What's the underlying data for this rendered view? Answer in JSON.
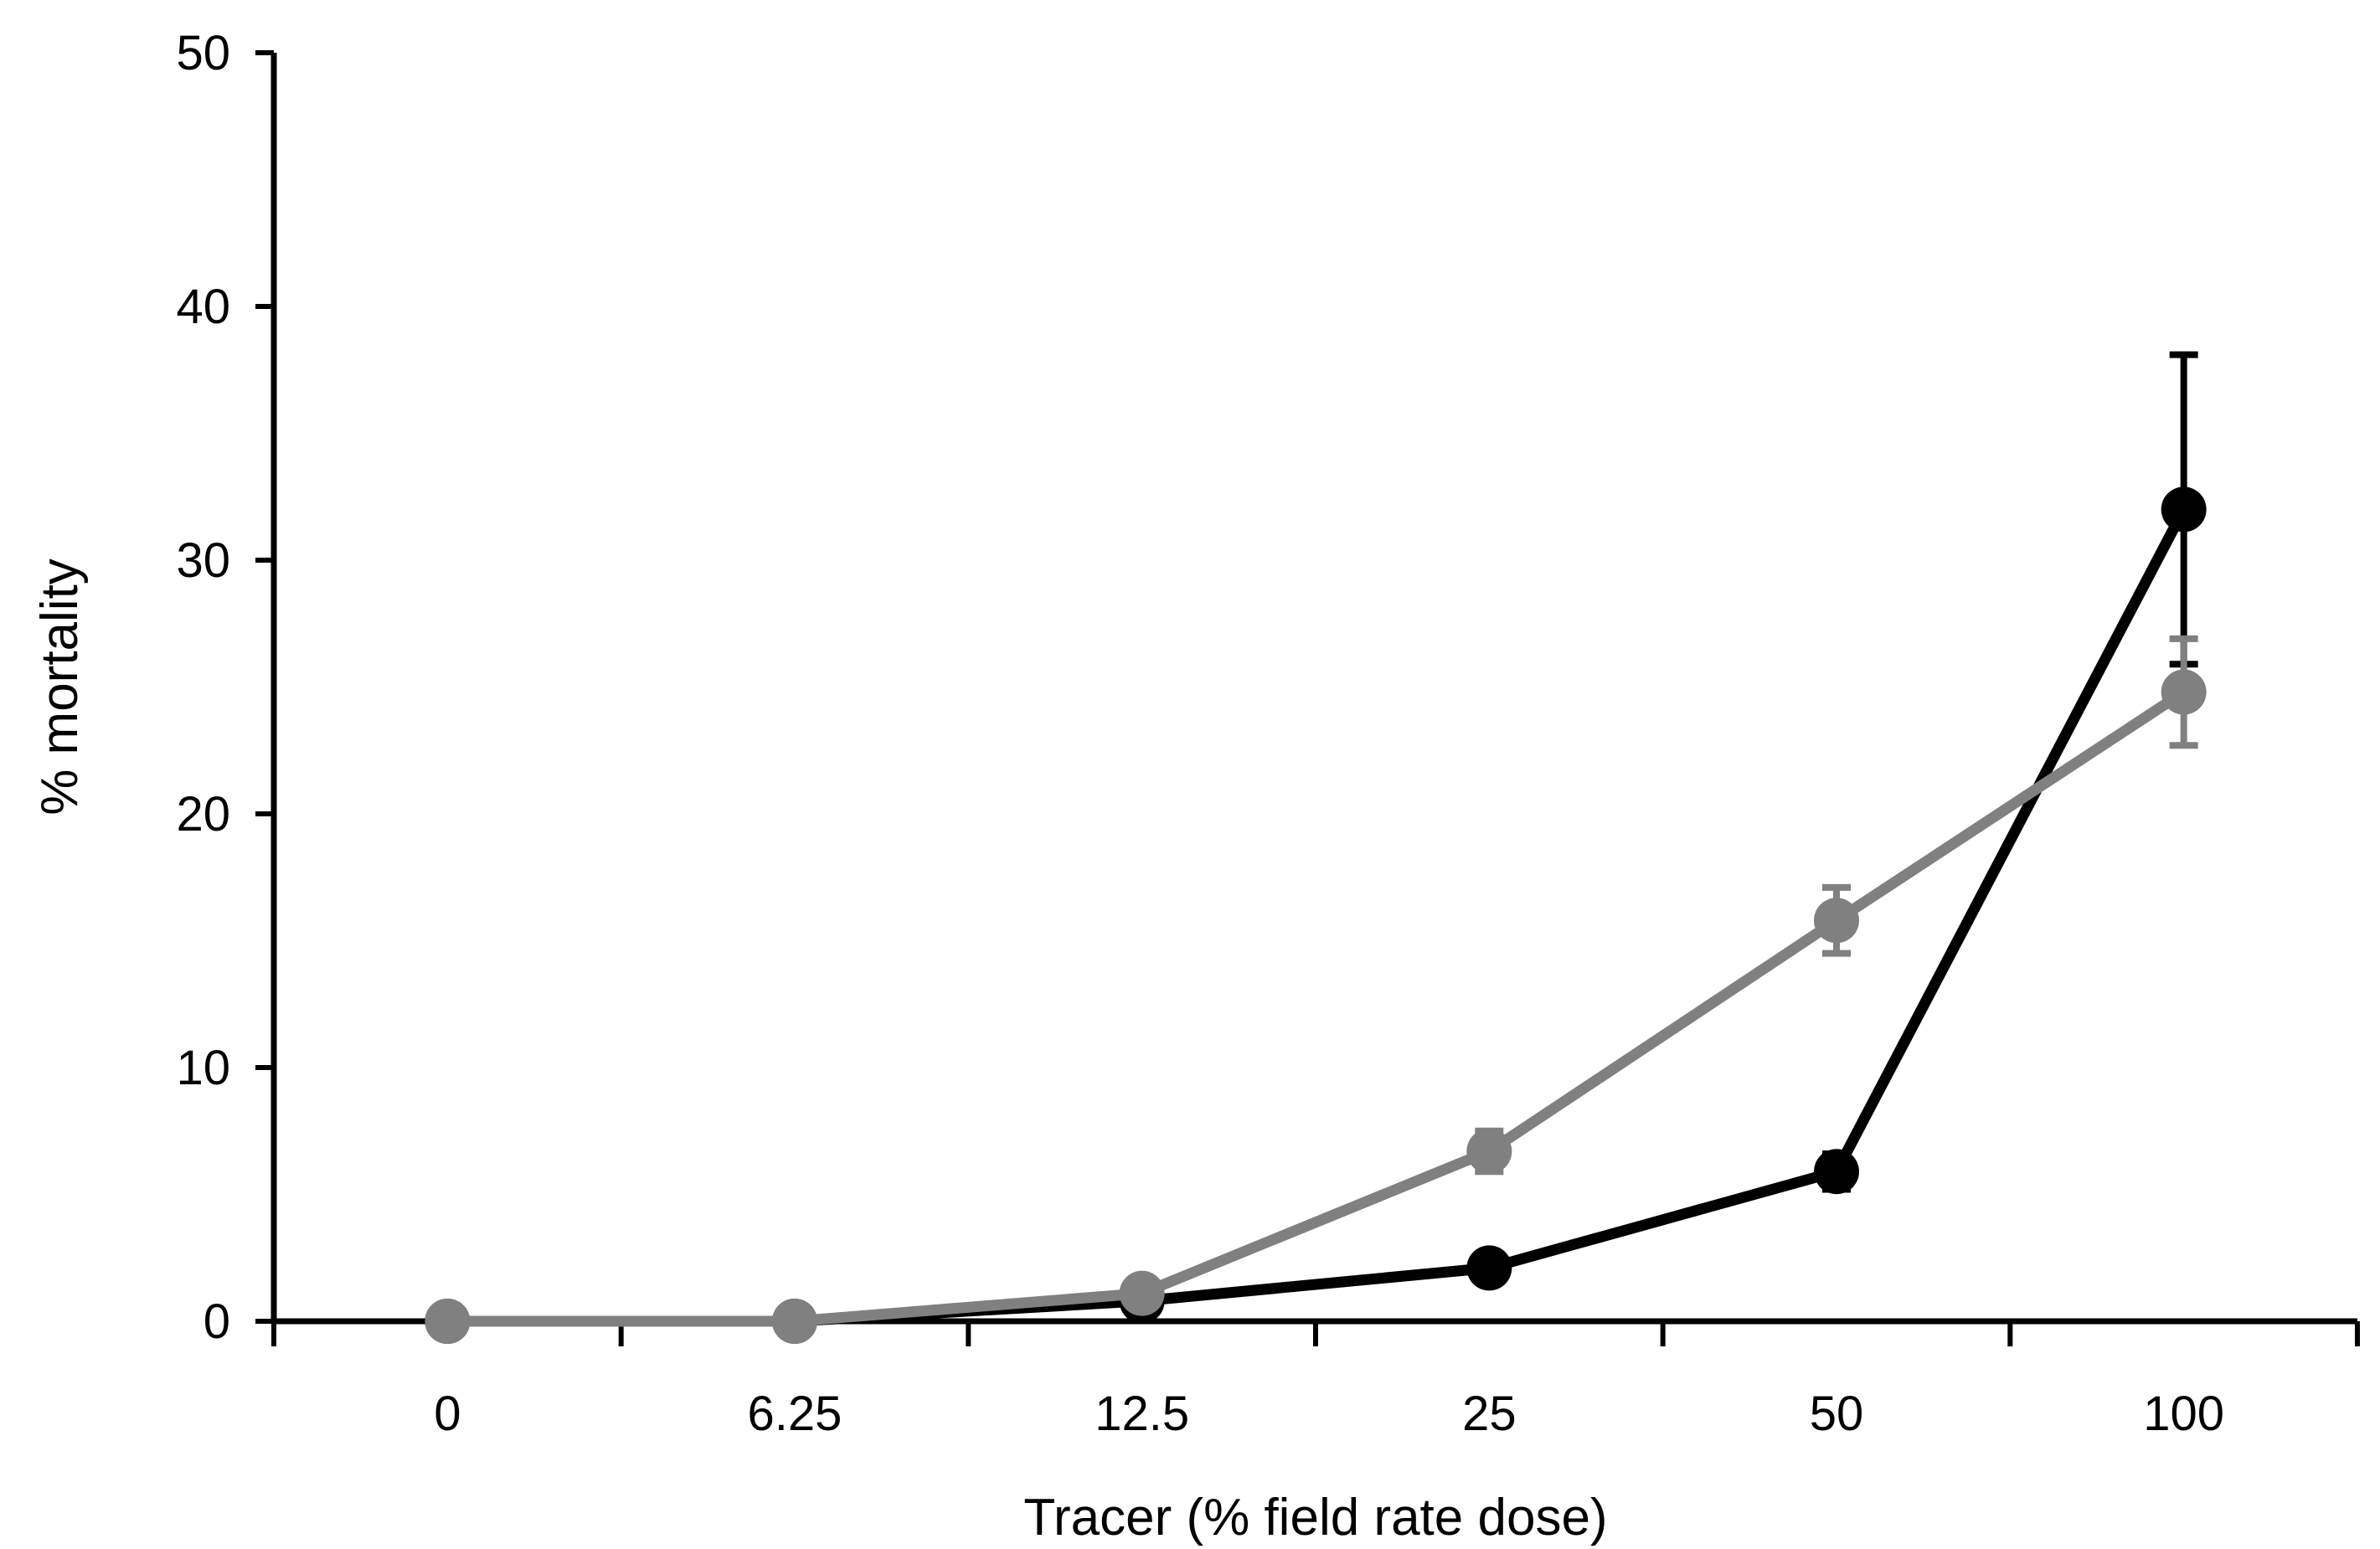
{
  "chart_data": {
    "type": "line",
    "title": "",
    "xlabel": "Tracer (% field rate dose)",
    "ylabel": "% mortality",
    "categories": [
      "0",
      "6.25",
      "12.5",
      "25",
      "50",
      "100"
    ],
    "ylim": [
      0,
      50
    ],
    "yticks": [
      0,
      10,
      20,
      30,
      40,
      50
    ],
    "grid": false,
    "legend": "none",
    "series": [
      {
        "color": "#000000",
        "values": [
          0,
          0,
          0.8,
          2.1,
          5.9,
          32.0
        ],
        "error": [
          0,
          0,
          0.3,
          0.3,
          0.7,
          6.1
        ]
      },
      {
        "color": "#808080",
        "values": [
          0,
          0,
          1.1,
          6.7,
          15.8,
          24.8
        ],
        "error": [
          0,
          0,
          0.4,
          0.8,
          1.3,
          2.1
        ]
      }
    ]
  }
}
